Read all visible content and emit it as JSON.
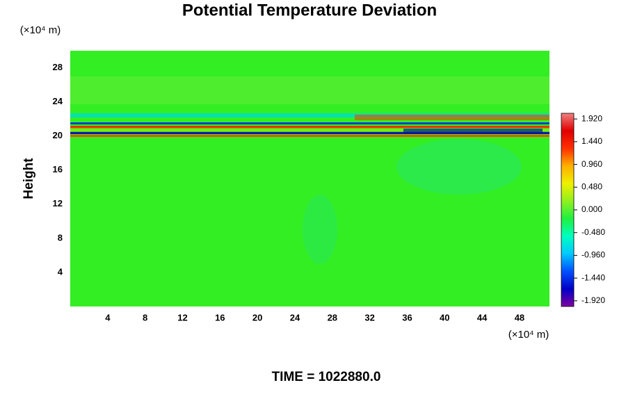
{
  "chart_data": {
    "type": "heatmap",
    "title": "Potential Temperature Deviation",
    "y_label": "Height",
    "y_unit": "(×10⁴ m)",
    "x_unit": "(×10⁴ m)",
    "footer": "TIME = 1022880.0",
    "xlim": [
      0,
      51.2
    ],
    "xticks": [
      4,
      8,
      12,
      16,
      20,
      24,
      28,
      32,
      36,
      40,
      44,
      48
    ],
    "ylim": [
      0,
      30
    ],
    "yticks": [
      4,
      8,
      12,
      16,
      20,
      24,
      28
    ],
    "field_color": "#33ee22",
    "clim": [
      -2.04,
      2.04
    ],
    "cticks": [
      {
        "value": 1.92,
        "label": "1.920"
      },
      {
        "value": 1.44,
        "label": "1.440"
      },
      {
        "value": 0.96,
        "label": "0.960"
      },
      {
        "value": 0.48,
        "label": "0.480"
      },
      {
        "value": 0,
        "label": "0.000"
      },
      {
        "value": -0.48,
        "label": "-0.480"
      },
      {
        "value": -0.96,
        "label": "-0.960"
      },
      {
        "value": -1.44,
        "label": "-1.440"
      },
      {
        "value": -1.92,
        "label": "-1.920"
      }
    ],
    "colormap": [
      "#8000a0",
      "#0000c8",
      "#0050ff",
      "#00c8ff",
      "#00ffc0",
      "#20f040",
      "#90f020",
      "#f0f000",
      "#ffb000",
      "#ff3000",
      "#e00000",
      "#f08080"
    ]
  }
}
